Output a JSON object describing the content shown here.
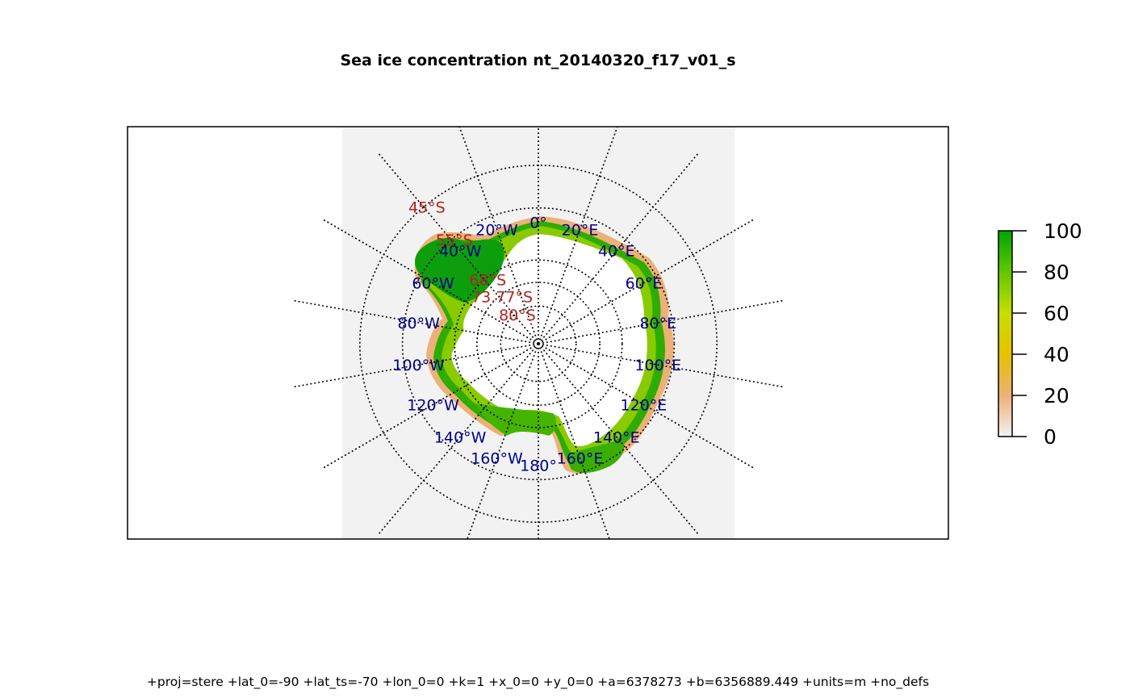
{
  "title": "Sea ice concentration nt_20140320_f17_v01_s",
  "projection_caption": "+proj=stere +lat_0=-90 +lat_ts=-70 +lon_0=0 +k=1 +x_0=0 +y_0=0 +a=6378273 +b=6356889.449 +units=m +no_defs",
  "graticule": {
    "longitude_labels": [
      {
        "deg": 0,
        "text": "0°"
      },
      {
        "deg": 20,
        "text": "20°E"
      },
      {
        "deg": 40,
        "text": "40°E"
      },
      {
        "deg": 60,
        "text": "60°E"
      },
      {
        "deg": 80,
        "text": "80°E"
      },
      {
        "deg": 100,
        "text": "100°E"
      },
      {
        "deg": 120,
        "text": "120°E"
      },
      {
        "deg": 140,
        "text": "140°E"
      },
      {
        "deg": 160,
        "text": "160°E"
      },
      {
        "deg": 180,
        "text": "180°"
      },
      {
        "deg": -160,
        "text": "160°W"
      },
      {
        "deg": -140,
        "text": "140°W"
      },
      {
        "deg": -120,
        "text": "120°W"
      },
      {
        "deg": -100,
        "text": "100°W"
      },
      {
        "deg": -80,
        "text": "80°W"
      },
      {
        "deg": -60,
        "text": "60°W"
      },
      {
        "deg": -40,
        "text": "40°W"
      },
      {
        "deg": -20,
        "text": "20°W"
      }
    ],
    "latitude_labels": [
      {
        "deg": -45,
        "text": "45°S"
      },
      {
        "deg": -55,
        "text": "55°S"
      },
      {
        "deg": -68,
        "text": "68°S"
      },
      {
        "deg": -73.77,
        "text": "73.77°S"
      },
      {
        "deg": -80,
        "text": "80°S"
      }
    ]
  },
  "legend": {
    "ticks": [
      "0",
      "20",
      "40",
      "60",
      "80",
      "100"
    ],
    "range": [
      0,
      100
    ],
    "colors": [
      "#f2f2f2",
      "#ecb176",
      "#e6e600",
      "#63c600",
      "#00a600"
    ]
  },
  "colors": {
    "land_background": "#f2f2f2",
    "longitude_label": "#00008b",
    "latitude_label": "#b22222",
    "ice_high": "#00a600",
    "ice_low": "#ecb176"
  }
}
